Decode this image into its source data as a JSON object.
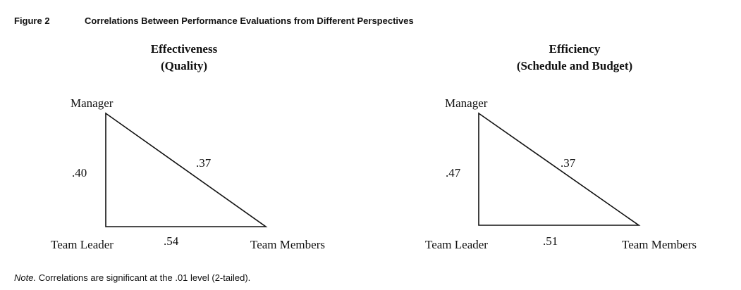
{
  "figure": {
    "label": "Figure 2",
    "title": "Correlations Between Performance Evaluations from Different Perspectives"
  },
  "panels": [
    {
      "title_line1": "Effectiveness",
      "title_line2": "(Quality)",
      "nodes": {
        "top": "Manager",
        "bottom_left": "Team Leader",
        "bottom_right": "Team Members"
      },
      "correlations": {
        "manager_team_leader": ".40",
        "manager_team_members": ".37",
        "team_leader_team_members": ".54"
      }
    },
    {
      "title_line1": "Efficiency",
      "title_line2": "(Schedule and Budget)",
      "nodes": {
        "top": "Manager",
        "bottom_left": "Team Leader",
        "bottom_right": "Team Members"
      },
      "correlations": {
        "manager_team_leader": ".47",
        "manager_team_members": ".37",
        "team_leader_team_members": ".51"
      }
    }
  ],
  "note": {
    "label": "Note.",
    "text": " Correlations are significant at the .01 level (2-tailed)."
  }
}
